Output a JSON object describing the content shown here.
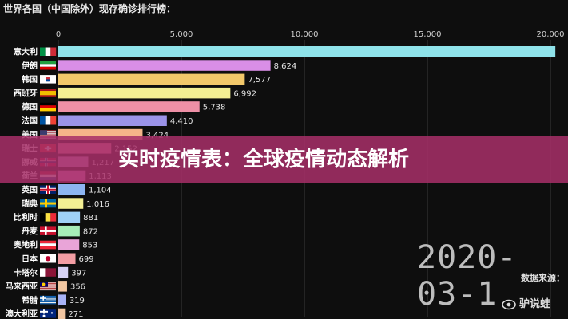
{
  "header": {
    "title": "世界各国（中国除外）现存确诊排行榜："
  },
  "date_label": "2020-03-1",
  "source_label": "数据来源：",
  "watermark": {
    "icon": "weibo-eye-icon",
    "text": "驴说蛙"
  },
  "banner": {
    "text": "实时疫情表：全球疫情动态解析",
    "color": "#a62f68"
  },
  "chart_data": {
    "type": "bar",
    "orientation": "horizontal",
    "title": "世界各国（中国除外）现存确诊排行榜：",
    "xlim": [
      0,
      20000
    ],
    "xticks": [
      "0",
      "5,000",
      "10,000",
      "15,000",
      "20,000"
    ],
    "xtick_values": [
      0,
      5000,
      10000,
      15000,
      20000
    ],
    "grid": true,
    "categories": [
      "意大利",
      "伊朗",
      "韩国",
      "西班牙",
      "德国",
      "法国",
      "美国",
      "瑞士",
      "挪威",
      "荷兰",
      "英国",
      "瑞典",
      "比利时",
      "丹麦",
      "奥地利",
      "日本",
      "卡塔尔",
      "马来西亚",
      "希腊",
      "澳大利亚"
    ],
    "values": [
      20200,
      8624,
      7577,
      6992,
      5738,
      4410,
      3424,
      2152,
      1217,
      1113,
      1104,
      1016,
      881,
      872,
      853,
      699,
      397,
      356,
      319,
      271
    ],
    "value_labels": [
      "",
      "8,624",
      "7,577",
      "6,992",
      "5,738",
      "4,410",
      "3,424",
      "2,152",
      "1,217",
      "1,113",
      "1,104",
      "1,016",
      "881",
      "872",
      "853",
      "699",
      "397",
      "356",
      "319",
      "271"
    ],
    "colors": [
      "#8fe3ea",
      "#d98ee6",
      "#f2c86a",
      "#f3ef93",
      "#ee90a6",
      "#9b93e8",
      "#f5b489",
      "#f18eaa",
      "#cf9bd0",
      "#e98fd4",
      "#8cb5f1",
      "#f3ef93",
      "#9fd1f6",
      "#a7edb8",
      "#e9a4d8",
      "#f39da3",
      "#d6d2f4",
      "#f2c6a1",
      "#a8b3f6",
      "#f2c6a1"
    ],
    "flags": [
      "italy",
      "iran",
      "south-korea",
      "spain",
      "germany",
      "france",
      "usa",
      "switzerland",
      "norway",
      "netherlands",
      "uk",
      "sweden",
      "belgium",
      "denmark",
      "austria",
      "japan",
      "qatar",
      "malaysia",
      "greece",
      "australia"
    ]
  }
}
